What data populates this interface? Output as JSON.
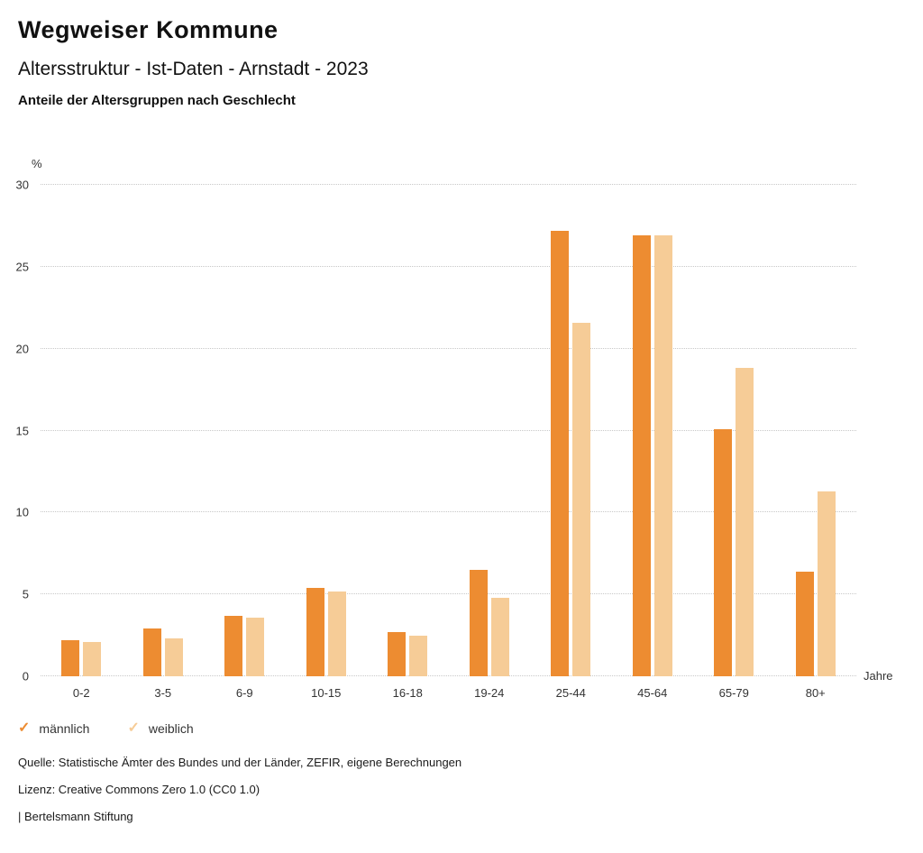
{
  "header": {
    "title": "Wegweiser Kommune",
    "subtitle": "Altersstruktur - Ist-Daten - Arnstadt - 2023",
    "chart_heading": "Anteile der Altersgruppen nach Geschlecht"
  },
  "chart_data": {
    "type": "bar",
    "title": "Anteile der Altersgruppen nach Geschlecht",
    "categories": [
      "0-2",
      "3-5",
      "6-9",
      "10-15",
      "16-18",
      "19-24",
      "25-44",
      "45-64",
      "65-79",
      "80+"
    ],
    "series": [
      {
        "key": "maennlich",
        "name": "männlich",
        "color": "#ED8C31",
        "values": [
          2.2,
          2.9,
          3.7,
          5.4,
          2.7,
          6.5,
          27.2,
          26.9,
          15.1,
          6.4
        ]
      },
      {
        "key": "weiblich",
        "name": "weiblich",
        "color": "#F6CC97",
        "values": [
          2.1,
          2.3,
          3.6,
          5.2,
          2.5,
          4.8,
          21.6,
          26.9,
          18.8,
          11.3
        ]
      }
    ],
    "xlabel": "Jahre",
    "ylabel": "%",
    "ylim": [
      0,
      30
    ],
    "yticks": [
      0,
      5,
      10,
      15,
      20,
      25,
      30
    ],
    "grid": true,
    "legend_position": "bottom"
  },
  "footer": {
    "source": "Quelle: Statistische Ämter des Bundes und der Länder, ZEFIR, eigene Berechnungen",
    "license": "Lizenz: Creative Commons Zero 1.0 (CC0 1.0)",
    "attribution": "| Bertelsmann Stiftung"
  }
}
